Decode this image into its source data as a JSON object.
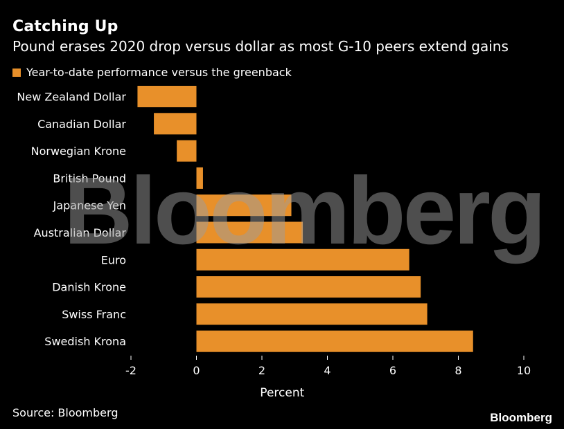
{
  "header": {
    "title": "Catching Up",
    "subtitle": "Pound erases 2020 drop versus dollar as most G-10 peers extend gains"
  },
  "footer": {
    "source": "Source: Bloomberg",
    "brand": "Bloomberg"
  },
  "watermark": "Bloomberg",
  "colors": {
    "background": "#000000",
    "bar": "#e8902a",
    "text": "#ffffff"
  },
  "chart_data": {
    "type": "bar",
    "orientation": "horizontal",
    "title": "Catching Up",
    "subtitle": "Pound erases 2020 drop versus dollar as most G-10 peers extend gains",
    "legend": [
      "Year-to-date performance versus the greenback"
    ],
    "legend_position": "top-left",
    "categories": [
      "New Zealand Dollar",
      "Canadian Dollar",
      "Norwegian Krone",
      "British Pound",
      "Japanese Yen",
      "Australian Dollar",
      "Euro",
      "Danish Krone",
      "Swiss Franc",
      "Swedish Krona"
    ],
    "values": [
      -1.8,
      -1.3,
      -0.6,
      0.2,
      2.9,
      3.25,
      6.5,
      6.85,
      7.05,
      8.45
    ],
    "xlabel": "Percent",
    "ylabel": "",
    "xlim": [
      -2,
      10
    ],
    "xticks": [
      -2,
      0,
      2,
      4,
      6,
      8,
      10
    ],
    "grid": false
  }
}
